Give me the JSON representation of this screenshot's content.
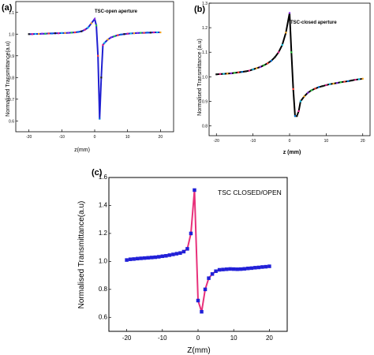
{
  "chart_data": [
    {
      "panel_label": "(a)",
      "type": "line",
      "annotation": "TSC-open aperture",
      "xlabel": "z(mm)",
      "ylabel": "Normalized Transmittance(a.u)",
      "xlim": [
        -24,
        24
      ],
      "ylim": [
        0.55,
        1.15
      ],
      "xticks": [
        "-20",
        "-10",
        "0",
        "10",
        "20"
      ],
      "yticks": [
        "0.6",
        "0.7",
        "0.8",
        "0.9",
        "1.0",
        "1.1"
      ],
      "line_color": "#1f1fd1",
      "x": [
        -20,
        -19,
        -18,
        -17,
        -16,
        -15,
        -14,
        -13,
        -12,
        -11,
        -10,
        -9,
        -8,
        -7,
        -6,
        -5,
        -4,
        -3,
        -2,
        -1,
        0,
        0.5,
        1,
        1.5,
        2,
        2.5,
        3,
        4,
        5,
        6,
        7,
        8,
        9,
        10,
        11,
        12,
        13,
        14,
        15,
        16,
        17,
        18,
        19,
        20
      ],
      "y": [
        1.0,
        1.0,
        1.001,
        1.001,
        1.002,
        1.002,
        1.003,
        1.003,
        1.004,
        1.004,
        1.005,
        1.005,
        1.006,
        1.007,
        1.008,
        1.01,
        1.013,
        1.02,
        1.03,
        1.05,
        1.07,
        1.04,
        0.9,
        0.61,
        0.8,
        0.95,
        0.96,
        0.975,
        0.985,
        0.99,
        0.995,
        0.998,
        1.0,
        1.002,
        1.003,
        1.004,
        1.005,
        1.006,
        1.006,
        1.007,
        1.007,
        1.008,
        1.008,
        1.008
      ]
    },
    {
      "panel_label": "(b)",
      "type": "line",
      "annotation": "TSC-closed aperture",
      "xlabel": "z (mm)",
      "ylabel": "Normalised Transmittance (a.u)",
      "xlim": [
        -22,
        22
      ],
      "ylim": [
        0.76,
        1.3
      ],
      "xticks": [
        "-20",
        "-10",
        "0",
        "10",
        "20"
      ],
      "yticks": [
        "0.8",
        "0.9",
        "1.0",
        "1.1",
        "1.2",
        "1.3"
      ],
      "line_color": "#000000",
      "x": [
        -20,
        -19,
        -18,
        -17,
        -16,
        -15,
        -14,
        -13,
        -12,
        -11,
        -10,
        -9,
        -8,
        -7,
        -6,
        -5,
        -4,
        -3,
        -2,
        -1,
        0,
        0.5,
        1,
        1.5,
        2,
        2.5,
        3,
        4,
        5,
        6,
        7,
        8,
        9,
        10,
        11,
        12,
        13,
        14,
        15,
        16,
        17,
        18,
        19,
        20
      ],
      "y": [
        1.01,
        1.011,
        1.012,
        1.013,
        1.014,
        1.016,
        1.018,
        1.02,
        1.022,
        1.025,
        1.03,
        1.035,
        1.04,
        1.047,
        1.055,
        1.065,
        1.08,
        1.1,
        1.13,
        1.18,
        1.26,
        1.1,
        0.95,
        0.84,
        0.84,
        0.86,
        0.9,
        0.92,
        0.935,
        0.945,
        0.952,
        0.958,
        0.962,
        0.966,
        0.97,
        0.972,
        0.975,
        0.978,
        0.98,
        0.982,
        0.985,
        0.988,
        0.99,
        0.992
      ]
    },
    {
      "panel_label": "(c)",
      "type": "line",
      "annotation": "TSC CLOSED/OPEN",
      "xlabel": "Z(mm)",
      "ylabel": "Normalised Transmittance(a.u)",
      "xlim": [
        -25,
        25
      ],
      "ylim": [
        0.5,
        1.6
      ],
      "xticks": [
        "-20",
        "-10",
        "0",
        "10",
        "20"
      ],
      "yticks": [
        "0.6",
        "0.8",
        "1.0",
        "1.2",
        "1.4",
        "1.6"
      ],
      "line_color": "#e8307a",
      "marker_color": "#2020d8",
      "x": [
        -20,
        -19,
        -18,
        -17,
        -16,
        -15,
        -14,
        -13,
        -12,
        -11,
        -10,
        -9,
        -8,
        -7,
        -6,
        -5,
        -4,
        -3,
        -2,
        -1,
        0,
        1,
        2,
        3,
        4,
        5,
        6,
        7,
        8,
        9,
        10,
        11,
        12,
        13,
        14,
        15,
        16,
        17,
        18,
        19,
        20
      ],
      "y": [
        1.01,
        1.015,
        1.017,
        1.02,
        1.022,
        1.024,
        1.026,
        1.028,
        1.03,
        1.033,
        1.037,
        1.04,
        1.045,
        1.05,
        1.055,
        1.06,
        1.07,
        1.09,
        1.2,
        1.51,
        0.72,
        0.64,
        0.8,
        0.88,
        0.91,
        0.93,
        0.94,
        0.942,
        0.944,
        0.946,
        0.945,
        0.944,
        0.945,
        0.947,
        0.95,
        0.952,
        0.955,
        0.957,
        0.96,
        0.962,
        0.965
      ]
    }
  ]
}
